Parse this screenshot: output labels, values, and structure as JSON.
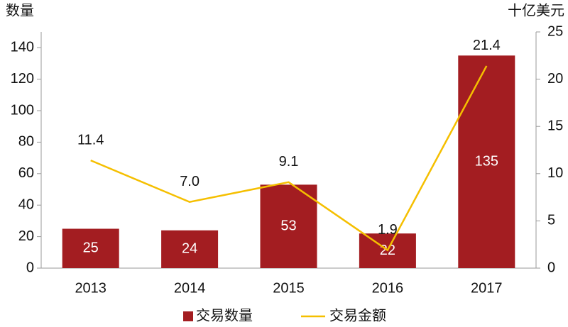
{
  "chart_data": {
    "type": "bar",
    "ylabel": "数量",
    "y2label": "十亿美元",
    "categories": [
      "2013",
      "2014",
      "2015",
      "2016",
      "2017"
    ],
    "series": [
      {
        "name": "交易数量",
        "type": "bar",
        "color": "#a31d21",
        "values": [
          25,
          24,
          53,
          22,
          135
        ]
      },
      {
        "name": "交易金额",
        "type": "line",
        "color": "#f5bf00",
        "axis": "y2",
        "values": [
          11.4,
          7.0,
          9.1,
          1.9,
          21.4
        ],
        "value_labels": [
          "11.4",
          "7.0",
          "9.1",
          "1.9",
          "21.4"
        ]
      }
    ],
    "ylim": [
      0,
      150
    ],
    "yticks": [
      0,
      20,
      40,
      60,
      80,
      100,
      120,
      140
    ],
    "y2lim": [
      0,
      25
    ],
    "y2ticks": [
      0,
      5,
      10,
      15,
      20,
      25
    ],
    "legend": "bottom"
  }
}
